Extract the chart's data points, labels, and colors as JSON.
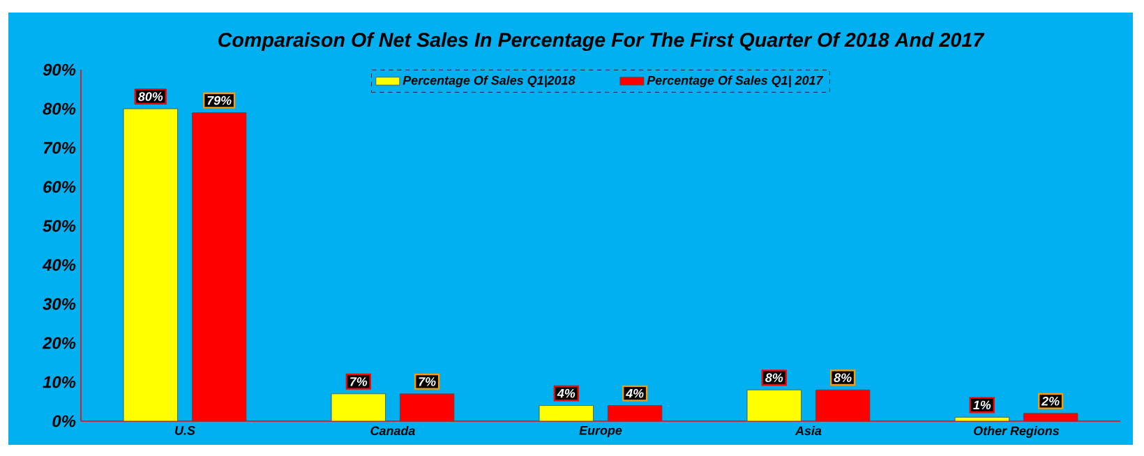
{
  "chart_data": {
    "type": "bar",
    "title": "Comparaison Of Net Sales In Percentage For The First Quarter Of 2018 And 2017",
    "categories": [
      "U.S",
      "Canada",
      "Europe",
      "Asia",
      "Other Regions"
    ],
    "series": [
      {
        "name": "Percentage Of Sales Q1|2018",
        "color": "#ffff00",
        "values": [
          80,
          7,
          4,
          8,
          1
        ],
        "value_labels": [
          "80%",
          "7%",
          "4%",
          "8%",
          "1%"
        ]
      },
      {
        "name": "Percentage Of Sales Q1| 2017",
        "color": "#ff0000",
        "values": [
          79,
          7,
          4,
          8,
          2
        ],
        "value_labels": [
          "79%",
          "7%",
          "4%",
          "8%",
          "2%"
        ]
      }
    ],
    "ylim": [
      0,
      90
    ],
    "yticks": [
      {
        "value": 0,
        "label": "0%"
      },
      {
        "value": 10,
        "label": "10%"
      },
      {
        "value": 20,
        "label": "20%"
      },
      {
        "value": 30,
        "label": "30%"
      },
      {
        "value": 40,
        "label": "40%"
      },
      {
        "value": 50,
        "label": "50%"
      },
      {
        "value": 60,
        "label": "60%"
      },
      {
        "value": 70,
        "label": "70%"
      },
      {
        "value": 80,
        "label": "80%"
      },
      {
        "value": 90,
        "label": "90%"
      }
    ],
    "grid": false,
    "legend": "top"
  }
}
